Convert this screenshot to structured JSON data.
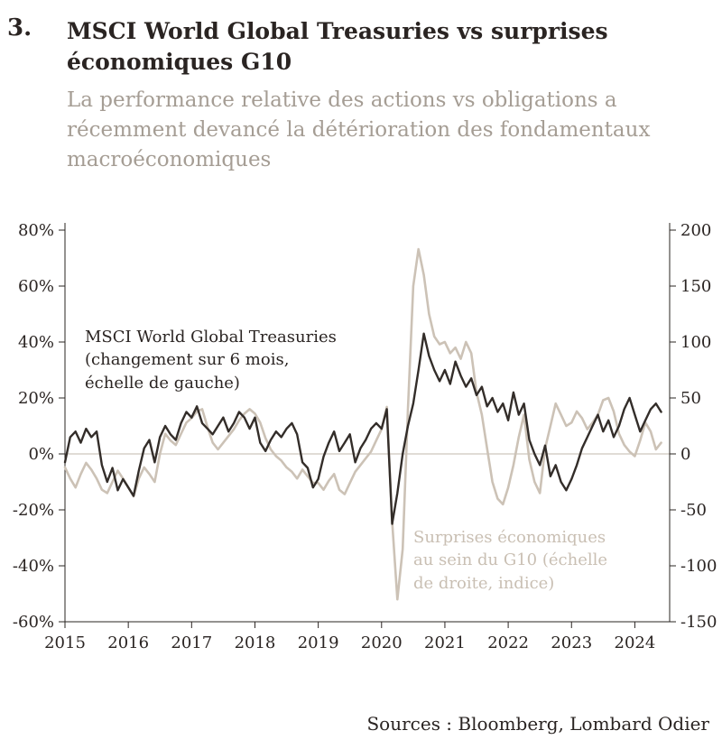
{
  "header": {
    "number": "3.",
    "title": "MSCI World Global Treasuries vs surprises\néconomiques G10",
    "subtitle": "La performance relative des actions vs obligations a\nrécemment devancé la détérioration des fondamentaux\nmacroéconomiques"
  },
  "footer": {
    "sources": "Sources : Bloomberg, Lombard Odier"
  },
  "chart_data": {
    "type": "line",
    "title": "MSCI World Global Treasuries vs surprises économiques G10",
    "x_min": 2015.0,
    "x_max": 2024.55,
    "points_per_year": 12,
    "x_ticks": [
      2015,
      2016,
      2017,
      2018,
      2019,
      2020,
      2021,
      2022,
      2023,
      2024
    ],
    "left_axis": {
      "min": -60,
      "max": 80,
      "ticks": [
        {
          "v": 80,
          "t": "80%"
        },
        {
          "v": 60,
          "t": "60%"
        },
        {
          "v": 40,
          "t": "40%"
        },
        {
          "v": 20,
          "t": "20%"
        },
        {
          "v": 0,
          "t": "0%"
        },
        {
          "v": -20,
          "t": "-20%"
        },
        {
          "v": -40,
          "t": "-40%"
        },
        {
          "v": -60,
          "t": "-60%"
        }
      ]
    },
    "right_axis": {
      "min": -150,
      "max": 200,
      "ticks": [
        {
          "v": 200,
          "t": "200"
        },
        {
          "v": 150,
          "t": "150"
        },
        {
          "v": 100,
          "t": "100"
        },
        {
          "v": 50,
          "t": "50"
        },
        {
          "v": 0,
          "t": "0"
        },
        {
          "v": -50,
          "t": "-50"
        },
        {
          "v": -100,
          "t": "-100"
        },
        {
          "v": -150,
          "t": "-150"
        }
      ]
    },
    "zero_line_color": "#d6d0c8",
    "axis_color": "#2a2422",
    "series": [
      {
        "name": "MSCI World Global Treasuries (changement sur 6 mois, échelle de gauche)",
        "axis": "left",
        "color": "#332d29",
        "width": 2.4,
        "values": [
          -3,
          6,
          8,
          4,
          9,
          6,
          8,
          -4,
          -10,
          -5,
          -13,
          -9,
          -12,
          -15,
          -6,
          2,
          5,
          -3,
          6,
          10,
          7,
          5,
          11,
          15,
          13,
          17,
          11,
          9,
          7,
          10,
          13,
          8,
          11,
          15,
          13,
          9,
          13,
          4,
          1,
          5,
          8,
          6,
          9,
          11,
          7,
          -3,
          -5,
          -12,
          -9,
          -1,
          4,
          8,
          1,
          4,
          7,
          -3,
          2,
          5,
          9,
          11,
          9,
          16,
          -25,
          -14,
          0,
          10,
          18,
          30,
          43,
          35,
          30,
          26,
          30,
          25,
          33,
          28,
          24,
          27,
          21,
          24,
          17,
          20,
          15,
          18,
          12,
          22,
          14,
          18,
          5,
          0,
          -4,
          3,
          -8,
          -4,
          -10,
          -13,
          -9,
          -4,
          2,
          6,
          10,
          14,
          8,
          12,
          6,
          10,
          16,
          20,
          14,
          8,
          12,
          16,
          18,
          15
        ]
      },
      {
        "name": "Surprises économiques au sein du G10 (échelle de droite, indice)",
        "axis": "right",
        "color": "#ccc2b6",
        "width": 2.6,
        "values": [
          -12,
          -22,
          -30,
          -18,
          -8,
          -14,
          -22,
          -32,
          -35,
          -25,
          -15,
          -22,
          -30,
          -38,
          -22,
          -12,
          -18,
          -25,
          0,
          18,
          12,
          8,
          18,
          28,
          32,
          38,
          40,
          24,
          10,
          4,
          10,
          16,
          22,
          30,
          36,
          40,
          36,
          28,
          14,
          4,
          -2,
          -6,
          -12,
          -16,
          -22,
          -14,
          -20,
          -26,
          -26,
          -32,
          -24,
          -18,
          -32,
          -36,
          -26,
          -16,
          -10,
          -4,
          2,
          12,
          22,
          42,
          -60,
          -130,
          -85,
          40,
          150,
          183,
          160,
          125,
          105,
          98,
          100,
          90,
          95,
          85,
          100,
          90,
          55,
          35,
          5,
          -25,
          -40,
          -45,
          -30,
          -10,
          15,
          35,
          -5,
          -25,
          -35,
          5,
          25,
          45,
          35,
          25,
          28,
          38,
          32,
          22,
          28,
          35,
          48,
          50,
          38,
          18,
          8,
          2,
          -2,
          12,
          28,
          20,
          4,
          10
        ]
      }
    ],
    "annotations": {
      "left_series": "MSCI World Global Treasuries\n(changement sur 6 mois,\néchelle de gauche)",
      "right_series": "Surprises économiques\nau sein du G10 (échelle\nde droite, indice)"
    }
  }
}
